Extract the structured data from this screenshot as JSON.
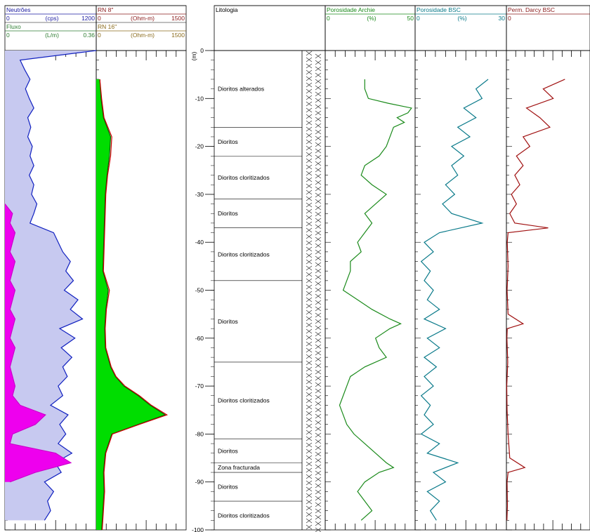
{
  "chart_data": {
    "type": "line",
    "depth_axis": {
      "unit_label": "(m)",
      "range": [
        0,
        -100
      ],
      "ticks": [
        0,
        -10,
        -20,
        -30,
        -40,
        -50,
        -60,
        -70,
        -80,
        -90,
        -100
      ]
    },
    "tracks": [
      {
        "headers": [
          {
            "name": "Neutrões",
            "min": "0",
            "unit": "(cps)",
            "max": "1200",
            "color": "#1a1aa0"
          },
          {
            "name": "Fluxo",
            "min": "0",
            "unit": "(L/m)",
            "max": "0.36",
            "color": "#2e7d32"
          }
        ],
        "series": [
          {
            "name": "Neutrões",
            "fill": "#c7c9f0",
            "line": "#1020c0",
            "scale": [
              0,
              1200
            ],
            "depth": [
              0,
              -2,
              -4,
              -6,
              -8,
              -10,
              -12,
              -14,
              -16,
              -18,
              -20,
              -22,
              -24,
              -26,
              -28,
              -30,
              -32,
              -34,
              -36,
              -38,
              -40,
              -42,
              -44,
              -46,
              -48,
              -50,
              -52,
              -54,
              -56,
              -58,
              -60,
              -62,
              -64,
              -66,
              -68,
              -70,
              -72,
              -74,
              -76,
              -78,
              -80,
              -82,
              -84,
              -86,
              -88,
              -90,
              -92,
              -94,
              -96,
              -98
            ],
            "values": [
              1200,
              200,
              260,
              330,
              270,
              320,
              380,
              300,
              340,
              300,
              360,
              330,
              380,
              320,
              380,
              350,
              420,
              380,
              330,
              640,
              700,
              760,
              860,
              800,
              900,
              780,
              960,
              860,
              1020,
              720,
              920,
              740,
              880,
              760,
              820,
              700,
              760,
              600,
              830,
              720,
              800,
              700,
              880,
              660,
              740,
              520,
              640,
              560,
              600,
              520
            ]
          },
          {
            "name": "Fluxo",
            "fill": "#ee00ee",
            "line": "#cc00cc",
            "scale": [
              0,
              0.36
            ],
            "depth": [
              -32,
              -34,
              -36,
              -38,
              -40,
              -42,
              -44,
              -46,
              -48,
              -50,
              -52,
              -54,
              -56,
              -58,
              -60,
              -62,
              -64,
              -66,
              -68,
              -70,
              -72,
              -74,
              -76,
              -78,
              -80,
              -82,
              -84,
              -86,
              -88,
              -90
            ],
            "values": [
              0,
              0.03,
              0.02,
              0.04,
              0.03,
              0.02,
              0.04,
              0.03,
              0.02,
              0.04,
              0.03,
              0.02,
              0.04,
              0.03,
              0.02,
              0.04,
              0.03,
              0.02,
              0.03,
              0.04,
              0.03,
              0.06,
              0.16,
              0.12,
              0.03,
              0.02,
              0.2,
              0.26,
              0.12,
              0.02
            ]
          }
        ]
      },
      {
        "headers": [
          {
            "name": "RN 8\"",
            "min": "0",
            "unit": "(Ohm-m)",
            "max": "1500",
            "color": "#8a1a1a"
          },
          {
            "name": "RN 16\"",
            "min": "0",
            "unit": "(Ohm-m)",
            "max": "1500",
            "color": "#8a6a1a"
          }
        ],
        "series": [
          {
            "name": "RN 16\"",
            "fill": "#00dd00",
            "line": "#006400",
            "scale": [
              0,
              1500
            ],
            "depth": [
              -6,
              -10,
              -14,
              -18,
              -22,
              -26,
              -30,
              -34,
              -38,
              -42,
              -46,
              -50,
              -54,
              -58,
              -62,
              -66,
              -68,
              -70,
              -72,
              -74,
              -76,
              -78,
              -80,
              -84,
              -88,
              -92,
              -96,
              -100
            ],
            "values": [
              60,
              80,
              120,
              240,
              220,
              180,
              150,
              140,
              130,
              120,
              110,
              200,
              160,
              140,
              150,
              240,
              320,
              460,
              700,
              900,
              1150,
              700,
              260,
              150,
              120,
              130,
              110,
              90
            ]
          },
          {
            "name": "RN 8\"",
            "fill": "none",
            "line": "#cc0000",
            "scale": [
              0,
              1500
            ],
            "depth": [
              -6,
              -10,
              -14,
              -18,
              -22,
              -26,
              -30,
              -34,
              -38,
              -42,
              -46,
              -50,
              -54,
              -58,
              -62,
              -66,
              -68,
              -70,
              -72,
              -74,
              -76,
              -78,
              -80,
              -84,
              -88,
              -92,
              -96,
              -100
            ],
            "values": [
              60,
              90,
              130,
              260,
              240,
              190,
              160,
              150,
              140,
              130,
              120,
              220,
              170,
              150,
              160,
              250,
              330,
              480,
              720,
              920,
              1180,
              720,
              270,
              160,
              130,
              140,
              120,
              100
            ]
          }
        ]
      },
      {
        "headers": [
          {
            "name": "Litologia",
            "color": "#000000"
          }
        ],
        "lithology": [
          {
            "label": "Dioritos alterados",
            "top": 0,
            "bottom": -16
          },
          {
            "label": "Dioritos",
            "top": -16,
            "bottom": -22
          },
          {
            "label": "Dioritos cloritizados",
            "top": -22,
            "bottom": -31
          },
          {
            "label": "Dioritos",
            "top": -31,
            "bottom": -37
          },
          {
            "label": "Dioritos cloritizados",
            "top": -37,
            "bottom": -48
          },
          {
            "label": "Dioritos",
            "top": -48,
            "bottom": -65
          },
          {
            "label": "Dioritos cloritizados",
            "top": -65,
            "bottom": -81
          },
          {
            "label": "Dioritos",
            "top": -81,
            "bottom": -86
          },
          {
            "label": "Zona fracturada",
            "top": -86,
            "bottom": -88
          },
          {
            "label": "Dioritos",
            "top": -88,
            "bottom": -94
          },
          {
            "label": "Dioritos cloritizados",
            "top": -94,
            "bottom": -100
          }
        ]
      },
      {
        "headers": [
          {
            "name": "Porosidade Archie",
            "min": "0",
            "unit": "(%)",
            "max": "50",
            "color": "#1a8a1a"
          }
        ],
        "series": [
          {
            "name": "Porosidade Archie",
            "fill": "none",
            "line": "#1a8a1a",
            "scale": [
              0,
              50
            ],
            "depth": [
              -6,
              -8,
              -10,
              -11,
              -12,
              -13,
              -14,
              -15,
              -16,
              -18,
              -20,
              -22,
              -24,
              -26,
              -28,
              -30,
              -32,
              -34,
              -36,
              -38,
              -40,
              -42,
              -44,
              -46,
              -48,
              -50,
              -52,
              -54,
              -56,
              -57,
              -58,
              -60,
              -62,
              -64,
              -66,
              -68,
              -70,
              -72,
              -74,
              -76,
              -78,
              -80,
              -82,
              -84,
              -86,
              -87,
              -88,
              -90,
              -92,
              -94,
              -96,
              -98
            ],
            "values": [
              22,
              22,
              24,
              35,
              48,
              46,
              40,
              44,
              38,
              36,
              34,
              30,
              22,
              20,
              26,
              34,
              28,
              22,
              26,
              22,
              18,
              20,
              14,
              14,
              12,
              10,
              18,
              26,
              36,
              42,
              36,
              28,
              30,
              34,
              22,
              14,
              12,
              10,
              8,
              10,
              12,
              16,
              22,
              28,
              34,
              38,
              30,
              22,
              18,
              22,
              26,
              20
            ]
          }
        ]
      },
      {
        "headers": [
          {
            "name": "Porosidade BSC",
            "min": "0",
            "unit": "(%)",
            "max": "30",
            "color": "#0a7a8a"
          }
        ],
        "series": [
          {
            "name": "Porosidade BSC",
            "fill": "none",
            "line": "#0a7a8a",
            "scale": [
              0,
              30
            ],
            "depth": [
              -6,
              -8,
              -10,
              -12,
              -14,
              -16,
              -18,
              -20,
              -22,
              -24,
              -26,
              -28,
              -30,
              -32,
              -34,
              -36,
              -38,
              -40,
              -42,
              -44,
              -46,
              -48,
              -50,
              -52,
              -54,
              -56,
              -58,
              -60,
              -62,
              -64,
              -66,
              -68,
              -70,
              -72,
              -74,
              -76,
              -78,
              -80,
              -82,
              -84,
              -86,
              -88,
              -90,
              -92,
              -94,
              -96,
              -98
            ],
            "values": [
              24,
              20,
              22,
              16,
              20,
              14,
              18,
              12,
              16,
              12,
              14,
              10,
              13,
              9,
              12,
              22,
              8,
              3,
              6,
              2,
              5,
              3,
              6,
              4,
              8,
              3,
              10,
              4,
              8,
              3,
              7,
              3,
              6,
              2,
              5,
              3,
              6,
              2,
              8,
              4,
              14,
              6,
              10,
              4,
              8,
              5,
              7
            ]
          }
        ]
      },
      {
        "headers": [
          {
            "name": "Perm. Darcy BSC",
            "min": "0",
            "color": "#8a1a1a"
          }
        ],
        "series": [
          {
            "name": "Perm. Darcy BSC",
            "fill": "none",
            "line": "#a01010",
            "scale": [
              0,
              0.5
            ],
            "depth": [
              -6,
              -8,
              -10,
              -12,
              -14,
              -16,
              -18,
              -20,
              -22,
              -24,
              -26,
              -28,
              -30,
              -32,
              -34,
              -36,
              -37,
              -38,
              -40,
              -45,
              -50,
              -55,
              -57,
              -58,
              -60,
              -65,
              -70,
              -75,
              -80,
              -85,
              -87,
              -88,
              -90,
              -95,
              -98
            ],
            "values": [
              0.35,
              0.22,
              0.28,
              0.12,
              0.2,
              0.26,
              0.1,
              0.14,
              0.06,
              0.1,
              0.05,
              0.08,
              0.03,
              0.06,
              0.02,
              0.05,
              0.25,
              0.01,
              0.005,
              0.01,
              0.004,
              0.01,
              0.1,
              0.005,
              0.003,
              0.008,
              0.002,
              0.004,
              0.01,
              0.02,
              0.11,
              0.01,
              0.004,
              0.006,
              0.003
            ]
          }
        ]
      }
    ]
  }
}
